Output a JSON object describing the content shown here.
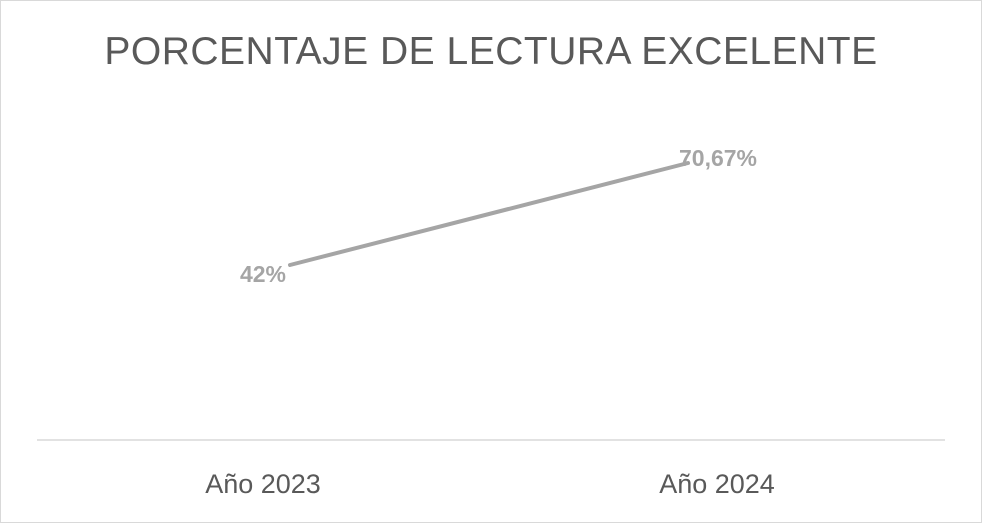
{
  "chart_data": {
    "type": "line",
    "title": "PORCENTAJE DE LECTURA EXCELENTE",
    "categories": [
      "Año 2023",
      "Año 2024"
    ],
    "series": [
      {
        "values": [
          42,
          70.67
        ],
        "data_labels": [
          "42%",
          "70,67%"
        ]
      }
    ],
    "xlabel": "",
    "ylabel": "",
    "unit": "%",
    "grid": false,
    "legend": "none",
    "colors": {
      "line": "#a5a5a5",
      "data_label": "#a5a5a5",
      "axis": "#d9d9d9",
      "tick_label": "#595959",
      "title": "#595959"
    }
  }
}
